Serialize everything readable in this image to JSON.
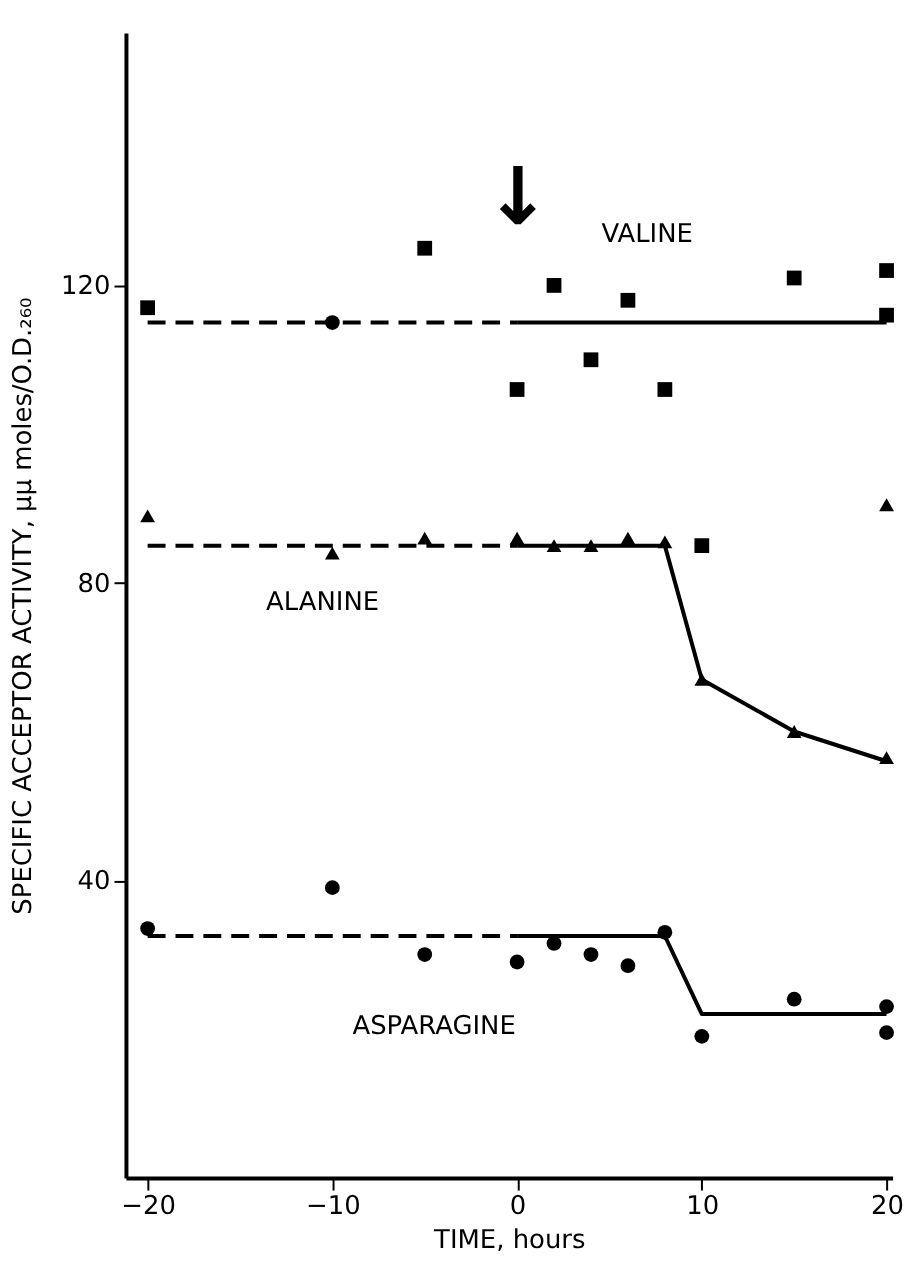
{
  "chart_data": {
    "type": "scatter",
    "xlabel": "TIME, hours",
    "ylabel": "SPECIFIC ACCEPTOR ACTIVITY, μμ moles/O.D.₂₆₀",
    "xlim": [
      -21.2,
      20.3
    ],
    "ylim": [
      0,
      154
    ],
    "xticks": [
      -20,
      -10,
      0,
      10,
      20
    ],
    "yticks": [
      40,
      80,
      120
    ],
    "series": [
      {
        "marker": "square",
        "color": "#000000",
        "x": [
          -20,
          -5,
          0,
          20
        ],
        "values": [
          117,
          125,
          106,
          116
        ]
      },
      {
        "marker": "circle",
        "color": "#000000",
        "x": [
          -10
        ],
        "values": [
          115
        ]
      },
      {
        "marker": "square",
        "color": "#000000",
        "x": [
          2,
          4,
          6,
          8,
          10,
          15,
          20
        ],
        "values": [
          120,
          110,
          118,
          106,
          85,
          121,
          122
        ]
      },
      {
        "type": "line",
        "line_style": "dashed",
        "marker": "none",
        "color": "#000000",
        "x": [
          -20,
          0
        ],
        "values": [
          115,
          115
        ]
      },
      {
        "type": "line",
        "line_style": "solid",
        "marker": "none",
        "color": "#000000",
        "x": [
          0,
          20
        ],
        "values": [
          115,
          115
        ]
      },
      {
        "marker": "triangle",
        "color": "#000000",
        "x": [
          -20,
          -10,
          -5,
          0,
          20
        ],
        "values": [
          89,
          84,
          86,
          86,
          90.5
        ]
      },
      {
        "marker": "triangle",
        "color": "#000000",
        "x": [
          2,
          4,
          6,
          8,
          10,
          15,
          20
        ],
        "values": [
          85,
          85,
          86,
          85.5,
          67,
          60,
          56.5
        ]
      },
      {
        "type": "line",
        "line_style": "dashed",
        "marker": "none",
        "color": "#000000",
        "x": [
          -20,
          0
        ],
        "values": [
          85,
          85
        ]
      },
      {
        "type": "line",
        "line_style": "solid",
        "marker": "none",
        "color": "#000000",
        "x": [
          0,
          8,
          10,
          15,
          20
        ],
        "values": [
          85,
          85,
          67,
          60,
          56
        ]
      },
      {
        "marker": "circle",
        "color": "#000000",
        "x": [
          -20,
          -10,
          -5,
          0,
          20
        ],
        "values": [
          33.5,
          39,
          30,
          29,
          19.5
        ]
      },
      {
        "marker": "circle",
        "color": "#000000",
        "x": [
          2,
          4,
          6,
          8,
          10,
          15,
          20
        ],
        "values": [
          31.5,
          30,
          28.5,
          33,
          19,
          24,
          23
        ]
      },
      {
        "type": "line",
        "line_style": "dashed",
        "marker": "none",
        "color": "#000000",
        "x": [
          -20,
          0
        ],
        "values": [
          32.5,
          32.5
        ]
      },
      {
        "type": "line",
        "line_style": "solid",
        "marker": "none",
        "color": "#000000",
        "x": [
          0,
          8,
          10,
          20
        ],
        "values": [
          32.5,
          32.5,
          22,
          22
        ]
      }
    ],
    "annotations": [
      "VALINE",
      "ALANINE",
      "ASPARAGINE",
      "↓"
    ]
  }
}
